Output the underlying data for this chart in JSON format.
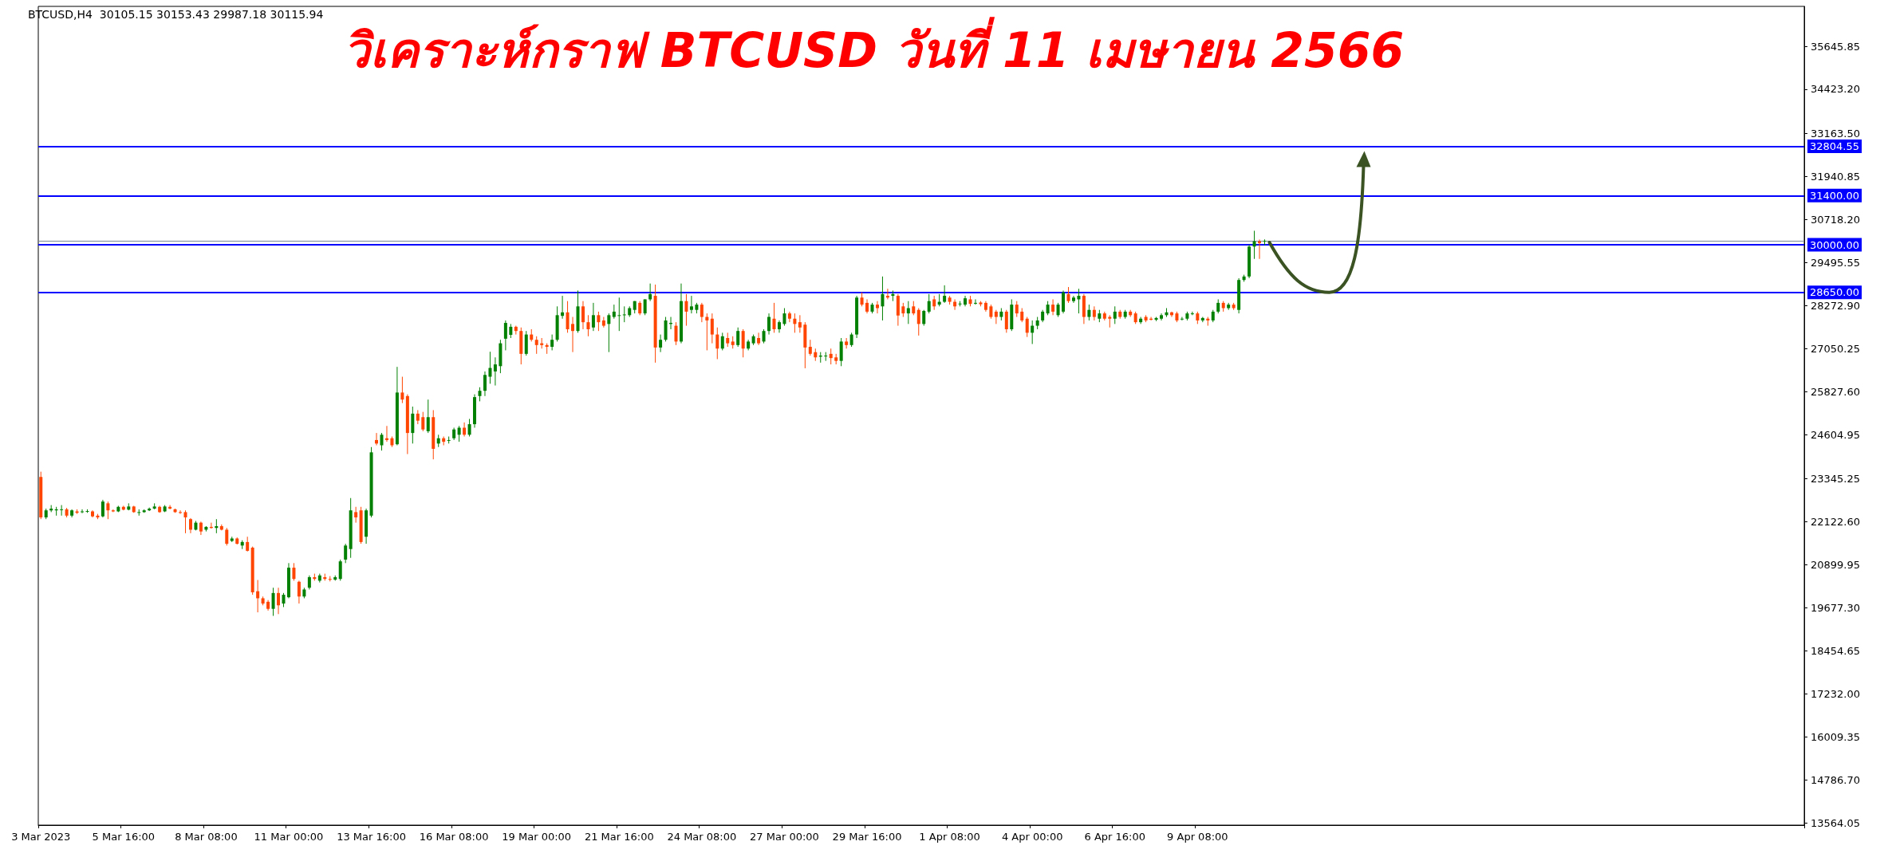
{
  "chart_data": {
    "type": "candlestick",
    "title": "วิเคราะห์กราฟ BTCUSD วันที่ 11 เมษายน 2566",
    "subtitle": "BTCUSD,H4  30105.15 30153.43 29987.18 30115.94",
    "colors": [
      "#ff4500",
      "#008000",
      "#008000",
      "#008000",
      "#008000",
      "#ff4500",
      "#008000",
      "#ff4500",
      "#008000",
      "#008000",
      "#ff4500",
      "#ff4500",
      "#008000",
      "#ff4500",
      "#ff4500",
      "#008000",
      "#ff4500",
      "#008000",
      "#ff4500",
      "#008000",
      "#008000",
      "#008000",
      "#008000",
      "#ff4500",
      "#008000",
      "#ff4500",
      "#ff4500",
      "#ff4500",
      "#ff4500",
      "#ff4500",
      "#008000",
      "#ff4500",
      "#008000",
      "#ff4500",
      "#008000",
      "#ff4500",
      "#ff4500",
      "#008000",
      "#ff4500",
      "#008000",
      "#ff4500",
      "#ff4500",
      "#ff4500",
      "#ff4500",
      "#ff4500",
      "#008000",
      "#ff4500",
      "#008000",
      "#008000",
      "#ff4500",
      "#ff4500",
      "#008000",
      "#008000",
      "#ff4500",
      "#008000",
      "#ff4500",
      "#ff4500",
      "#008000",
      "#008000",
      "#008000",
      "#008000",
      "#ff4500",
      "#ff4500",
      "#008000",
      "#008000",
      "#ff4500",
      "#008000",
      "#ff4500",
      "#ff4500",
      "#008000",
      "#ff4500",
      "#ff4500",
      "#008000",
      "#ff4500",
      "#ff4500",
      "#008000",
      "#ff4500",
      "#008000",
      "#ff4500",
      "#008000",
      "#008000",
      "#008000",
      "#ff4500",
      "#008000",
      "#008000",
      "#008000",
      "#008000",
      "#008000",
      "#008000",
      "#008000",
      "#008000",
      "#008000",
      "#ff4500",
      "#ff4500",
      "#008000",
      "#ff4500",
      "#ff4500",
      "#ff4500",
      "#ff4500",
      "#008000",
      "#008000",
      "#008000",
      "#ff4500",
      "#ff4500",
      "#008000",
      "#ff4500",
      "#ff4500",
      "#008000",
      "#ff4500",
      "#ff4500",
      "#008000",
      "#008000",
      "#008000",
      "#008000",
      "#008000",
      "#008000",
      "#ff4500",
      "#008000",
      "#008000",
      "#ff4500",
      "#008000",
      "#008000",
      "#008000",
      "#ff4500",
      "#008000",
      "#ff4500",
      "#008000",
      "#008000",
      "#ff4500",
      "#ff4500",
      "#ff4500",
      "#ff4500",
      "#008000",
      "#ff4500",
      "#ff4500",
      "#008000",
      "#ff4500",
      "#008000",
      "#008000",
      "#ff4500",
      "#008000",
      "#008000",
      "#ff4500",
      "#008000",
      "#008000",
      "#ff4500",
      "#ff4500",
      "#ff4500",
      "#ff4500",
      "#ff4500",
      "#ff4500",
      "#008000",
      "#008000",
      "#ff4500",
      "#ff4500",
      "#008000",
      "#ff4500",
      "#008000",
      "#008000",
      "#ff4500",
      "#ff4500",
      "#008000",
      "#ff4500",
      "#008000",
      "#ff4500",
      "#008000",
      "#ff4500",
      "#ff4500",
      "#008000",
      "#ff4500",
      "#ff4500",
      "#008000",
      "#008000",
      "#ff4500",
      "#008000",
      "#008000",
      "#ff4500",
      "#ff4500",
      "#008000",
      "#008000",
      "#ff4500",
      "#008000",
      "#ff4500",
      "#ff4500",
      "#ff4500",
      "#ff4500",
      "#008000",
      "#ff4500",
      "#008000",
      "#ff4500",
      "#ff4500",
      "#ff4500",
      "#008000",
      "#008000",
      "#008000",
      "#008000",
      "#ff4500",
      "#008000",
      "#008000",
      "#ff4500",
      "#008000",
      "#008000",
      "#ff4500",
      "#008000",
      "#ff4500",
      "#008000",
      "#ff4500",
      "#ff4500",
      "#008000",
      "#ff4500",
      "#008000",
      "#ff4500",
      "#ff4500",
      "#008000",
      "#ff4500",
      "#ff4500",
      "#008000",
      "#008000",
      "#008000",
      "#ff4500",
      "#ff4500",
      "#008000",
      "#008000",
      "#008000",
      "#ff4500",
      "#008000",
      "#ff4500",
      "#008000",
      "#008000",
      "#ff4500",
      "#008000",
      "#ff4500",
      "#008000",
      "#008000",
      "#008000",
      "#008000",
      "#ff4500",
      "#008000",
      null,
      null,
      null,
      null,
      null,
      null,
      null,
      null,
      null,
      null,
      null,
      null,
      null,
      null,
      null,
      null,
      null,
      null,
      null,
      null,
      null,
      null,
      null,
      null,
      null,
      null,
      null,
      null,
      null,
      null,
      null,
      null,
      null,
      null,
      null,
      null,
      null,
      null,
      null,
      null,
      null,
      null,
      null,
      null,
      null,
      null,
      null,
      null,
      null,
      null,
      null,
      null,
      null,
      null,
      null,
      null,
      null,
      null,
      null,
      null,
      null,
      null,
      null,
      null,
      null,
      null,
      null,
      null,
      null,
      null,
      null,
      null,
      null,
      null,
      null,
      null,
      null,
      null,
      null,
      null,
      null,
      null,
      null,
      null,
      null,
      null,
      null,
      null,
      null,
      null,
      null,
      null,
      null,
      null,
      null,
      null,
      null,
      null,
      null,
      null,
      null,
      null,
      null,
      null
    ],
    "categories": [
      "3 Mar 2023",
      null,
      null,
      null,
      null,
      null,
      null,
      null,
      null,
      null,
      null,
      null,
      null,
      null,
      null,
      null,
      "5 Mar 16:00",
      null,
      null,
      null,
      null,
      null,
      null,
      null,
      null,
      null,
      null,
      null,
      null,
      null,
      null,
      null,
      "8 Mar 08:00",
      null,
      null,
      null,
      null,
      null,
      null,
      null,
      null,
      null,
      null,
      null,
      null,
      null,
      null,
      null,
      "11 Mar 00:00",
      null,
      null,
      null,
      null,
      null,
      null,
      null,
      null,
      null,
      null,
      null,
      null,
      null,
      null,
      null,
      "13 Mar 16:00",
      null,
      null,
      null,
      null,
      null,
      null,
      null,
      null,
      null,
      null,
      null,
      null,
      null,
      null,
      null,
      "16 Mar 08:00",
      null,
      null,
      null,
      null,
      null,
      null,
      null,
      null,
      null,
      null,
      null,
      null,
      null,
      null,
      null,
      "19 Mar 00:00",
      null,
      null,
      null,
      null,
      null,
      null,
      null,
      null,
      null,
      null,
      null,
      null,
      null,
      null,
      null,
      "21 Mar 16:00",
      null,
      null,
      null,
      null,
      null,
      null,
      null,
      null,
      null,
      null,
      null,
      null,
      null,
      null,
      null,
      "24 Mar 08:00",
      null,
      null,
      null,
      null,
      null,
      null,
      null,
      null,
      null,
      null,
      null,
      null,
      null,
      null,
      null,
      "27 Mar 00:00",
      null,
      null,
      null,
      null,
      null,
      null,
      null,
      null,
      null,
      null,
      null,
      null,
      null,
      null,
      null,
      "29 Mar 16:00",
      null,
      null,
      null,
      null,
      null,
      null,
      null,
      null,
      null,
      null,
      null,
      null,
      null,
      null,
      null,
      "1 Apr 08:00",
      null,
      null,
      null,
      null,
      null,
      null,
      null,
      null,
      null,
      null,
      null,
      null,
      null,
      null,
      null,
      "4 Apr 00:00",
      null,
      null,
      null,
      null,
      null,
      null,
      null,
      null,
      null,
      null,
      null,
      null,
      null,
      null,
      null,
      "6 Apr 16:00",
      null,
      null,
      null,
      null,
      null,
      null,
      null,
      null,
      null,
      null,
      null,
      null,
      null,
      null,
      null,
      "9 Apr 08:00",
      null,
      null,
      null,
      null,
      null,
      null,
      null,
      null,
      null,
      null,
      null,
      null,
      null,
      null,
      null,
      null,
      null,
      null,
      null,
      null,
      null,
      null,
      null,
      null,
      null,
      null,
      null,
      null,
      null,
      null,
      null,
      null,
      null,
      null,
      null,
      null,
      null,
      null,
      null,
      null,
      null,
      null,
      null,
      null,
      null,
      null,
      null,
      null,
      null,
      null,
      null,
      null,
      null,
      null,
      null,
      null,
      null,
      null,
      null,
      null,
      null,
      null,
      null,
      null,
      null,
      null,
      null,
      null,
      null,
      null,
      null,
      null,
      null,
      null,
      null,
      null,
      null,
      null,
      null,
      null,
      null,
      null,
      null,
      null,
      null,
      null,
      null,
      null,
      null,
      null,
      null,
      null,
      null,
      null,
      null,
      null,
      null,
      null,
      null,
      null,
      null,
      null,
      null,
      null,
      null,
      null,
      null,
      null,
      null,
      null,
      null,
      null,
      null,
      null,
      null,
      null,
      null
    ],
    "ohlc": [
      [
        23400,
        23550,
        22200,
        22250
      ],
      [
        22250,
        22500,
        22200,
        22450
      ],
      [
        22450,
        22600,
        22400,
        22500
      ],
      [
        22450,
        22550,
        22300,
        22480
      ],
      [
        22480,
        22600,
        22300,
        22480
      ],
      [
        22480,
        22520,
        22250,
        22300
      ],
      [
        22300,
        22480,
        22250,
        22450
      ],
      [
        22420,
        22480,
        22350,
        22380
      ],
      [
        22400,
        22480,
        22370,
        22420
      ],
      [
        22420,
        22480,
        22380,
        22430
      ],
      [
        22420,
        22450,
        22250,
        22280
      ],
      [
        22300,
        22350,
        22200,
        22250
      ],
      [
        22280,
        22750,
        22250,
        22700
      ],
      [
        22650,
        22700,
        22200,
        22450
      ],
      [
        22450,
        22480,
        22400,
        22420
      ],
      [
        22420,
        22580,
        22400,
        22550
      ],
      [
        22550,
        22580,
        22450,
        22470
      ],
      [
        22470,
        22650,
        22450,
        22560
      ],
      [
        22560,
        22580,
        22380,
        22400
      ],
      [
        22400,
        22480,
        22300,
        22400
      ],
      [
        22400,
        22480,
        22380,
        22450
      ],
      [
        22450,
        22530,
        22430,
        22500
      ],
      [
        22500,
        22650,
        22480,
        22560
      ],
      [
        22550,
        22580,
        22380,
        22400
      ],
      [
        22420,
        22600,
        22400,
        22560
      ],
      [
        22550,
        22600,
        22480,
        22500
      ],
      [
        22480,
        22500,
        22380,
        22400
      ],
      [
        22400,
        22450,
        22350,
        22380
      ],
      [
        22400,
        22450,
        21800,
        22250
      ],
      [
        22200,
        22230,
        21800,
        21900
      ],
      [
        21900,
        22150,
        21880,
        22100
      ],
      [
        22100,
        22130,
        21750,
        21850
      ],
      [
        21900,
        22000,
        21850,
        21980
      ],
      [
        21980,
        22100,
        21930,
        21950
      ],
      [
        21950,
        22200,
        21800,
        22000
      ],
      [
        22000,
        22050,
        21880,
        21900
      ],
      [
        21900,
        21950,
        21450,
        21500
      ],
      [
        21580,
        21700,
        21550,
        21650
      ],
      [
        21650,
        21680,
        21480,
        21500
      ],
      [
        21450,
        21600,
        21350,
        21550
      ],
      [
        21550,
        21700,
        21280,
        21300
      ],
      [
        21390,
        21420,
        20050,
        20120
      ],
      [
        20150,
        20470,
        19550,
        19950
      ],
      [
        19950,
        20000,
        19750,
        19800
      ],
      [
        19850,
        19900,
        19600,
        19650
      ],
      [
        19650,
        20250,
        19450,
        20100
      ],
      [
        20100,
        20250,
        19500,
        19750
      ],
      [
        19800,
        20100,
        19700,
        20050
      ],
      [
        19980,
        20950,
        19950,
        20820
      ],
      [
        20820,
        20950,
        20450,
        20500
      ],
      [
        20420,
        20450,
        19800,
        20000
      ],
      [
        20000,
        20250,
        19950,
        20200
      ],
      [
        20250,
        20600,
        20200,
        20550
      ],
      [
        20550,
        20650,
        20450,
        20500
      ],
      [
        20450,
        20650,
        20400,
        20600
      ],
      [
        20550,
        20650,
        20450,
        20500
      ],
      [
        20500,
        20580,
        20430,
        20480
      ],
      [
        20480,
        20600,
        20450,
        20550
      ],
      [
        20500,
        21050,
        20450,
        21000
      ],
      [
        21050,
        21500,
        20950,
        21450
      ],
      [
        21350,
        22800,
        21100,
        22450
      ],
      [
        22400,
        22550,
        22100,
        22250
      ],
      [
        22450,
        22550,
        21500,
        21550
      ],
      [
        21700,
        22500,
        21500,
        22450
      ],
      [
        22300,
        24250,
        22250,
        24100
      ],
      [
        24450,
        24650,
        24300,
        24350
      ],
      [
        24300,
        24650,
        24150,
        24600
      ],
      [
        24500,
        24850,
        24400,
        24450
      ],
      [
        24500,
        24550,
        24250,
        24300
      ],
      [
        24330,
        26530,
        24300,
        25800
      ],
      [
        25800,
        26250,
        25500,
        25600
      ],
      [
        25700,
        25750,
        24050,
        24650
      ],
      [
        24650,
        25400,
        24350,
        25200
      ],
      [
        25200,
        25300,
        24900,
        25000
      ],
      [
        25100,
        25250,
        24700,
        24750
      ],
      [
        24700,
        25600,
        24650,
        25100
      ],
      [
        25100,
        25300,
        23900,
        24200
      ],
      [
        24350,
        24600,
        24250,
        24500
      ],
      [
        24500,
        24550,
        24300,
        24400
      ],
      [
        24450,
        24550,
        24350,
        24450
      ],
      [
        24500,
        24800,
        24450,
        24750
      ],
      [
        24600,
        24850,
        24400,
        24800
      ],
      [
        24800,
        24950,
        24550,
        24600
      ],
      [
        24600,
        25050,
        24550,
        24900
      ],
      [
        24900,
        25750,
        24800,
        25670
      ],
      [
        25700,
        25950,
        25550,
        25850
      ],
      [
        25850,
        26400,
        25700,
        26300
      ],
      [
        26250,
        26960,
        26050,
        26500
      ],
      [
        26400,
        26800,
        26000,
        26600
      ],
      [
        26550,
        27300,
        26350,
        27200
      ],
      [
        27330,
        27850,
        27000,
        27780
      ],
      [
        27440,
        27750,
        27350,
        27670
      ],
      [
        27670,
        27700,
        27450,
        27550
      ],
      [
        27550,
        27650,
        26600,
        26900
      ],
      [
        26900,
        27550,
        26850,
        27450
      ],
      [
        27450,
        27600,
        27250,
        27300
      ],
      [
        27300,
        27400,
        26900,
        27150
      ],
      [
        27200,
        27350,
        27050,
        27150
      ],
      [
        27150,
        27200,
        26900,
        27100
      ],
      [
        27100,
        27450,
        27000,
        27300
      ],
      [
        27300,
        28250,
        27250,
        28000
      ],
      [
        27980,
        28550,
        27900,
        28080
      ],
      [
        28080,
        28400,
        27500,
        27600
      ],
      [
        27750,
        27950,
        26950,
        27550
      ],
      [
        27550,
        28700,
        27500,
        28250
      ],
      [
        28250,
        28400,
        27600,
        27800
      ],
      [
        27800,
        28000,
        27400,
        27600
      ],
      [
        27650,
        28350,
        27550,
        28000
      ],
      [
        28000,
        28100,
        27550,
        27800
      ],
      [
        27850,
        27950,
        27650,
        27700
      ],
      [
        27750,
        28050,
        26950,
        28000
      ],
      [
        27950,
        28300,
        27900,
        28100
      ],
      [
        28000,
        28500,
        27550,
        28000
      ],
      [
        28000,
        28250,
        27800,
        28020
      ],
      [
        28000,
        28250,
        27950,
        28200
      ],
      [
        28150,
        28400,
        28050,
        28400
      ],
      [
        28350,
        28400,
        28000,
        28050
      ],
      [
        28050,
        28450,
        28000,
        28450
      ],
      [
        28450,
        28900,
        28400,
        28600
      ],
      [
        28550,
        28870,
        26650,
        27080
      ],
      [
        27080,
        27450,
        26950,
        27300
      ],
      [
        27300,
        27950,
        27250,
        27850
      ],
      [
        27750,
        27950,
        27600,
        27780
      ],
      [
        27700,
        27800,
        27150,
        27250
      ],
      [
        27250,
        28900,
        27200,
        28400
      ],
      [
        28400,
        28600,
        27700,
        28100
      ],
      [
        28150,
        28550,
        28050,
        28250
      ],
      [
        28150,
        28350,
        28050,
        28300
      ],
      [
        28300,
        28350,
        27800,
        27950
      ],
      [
        27950,
        28050,
        27000,
        27850
      ],
      [
        27900,
        28050,
        27200,
        27450
      ],
      [
        27450,
        27650,
        26750,
        27050
      ],
      [
        27050,
        27500,
        27000,
        27400
      ],
      [
        27350,
        27500,
        27100,
        27200
      ],
      [
        27250,
        27400,
        27050,
        27150
      ],
      [
        27150,
        27650,
        27100,
        27550
      ],
      [
        27550,
        27600,
        26800,
        27050
      ],
      [
        27050,
        27300,
        27000,
        27250
      ],
      [
        27200,
        27450,
        27150,
        27400
      ],
      [
        27350,
        27500,
        27150,
        27200
      ],
      [
        27250,
        27600,
        27200,
        27550
      ],
      [
        27550,
        28050,
        27450,
        27950
      ],
      [
        27900,
        28350,
        27500,
        27600
      ],
      [
        27600,
        27850,
        27500,
        27800
      ],
      [
        27750,
        28200,
        27700,
        28050
      ],
      [
        28050,
        28100,
        27800,
        27900
      ],
      [
        27900,
        28050,
        27500,
        27750
      ],
      [
        27800,
        28000,
        27500,
        27650
      ],
      [
        27730,
        27800,
        26490,
        27080
      ],
      [
        27100,
        27300,
        26850,
        26900
      ],
      [
        26950,
        27050,
        26700,
        26800
      ],
      [
        26820,
        26950,
        26650,
        26850
      ],
      [
        26850,
        26950,
        26700,
        26850
      ],
      [
        26900,
        27050,
        26600,
        26780
      ],
      [
        26800,
        26900,
        26600,
        26700
      ],
      [
        26700,
        27350,
        26550,
        27250
      ],
      [
        27250,
        27350,
        27050,
        27150
      ],
      [
        27150,
        27500,
        27100,
        27450
      ],
      [
        27450,
        28550,
        27350,
        28500
      ],
      [
        28500,
        28650,
        28250,
        28300
      ],
      [
        28350,
        28450,
        28050,
        28100
      ],
      [
        28100,
        28350,
        28050,
        28300
      ],
      [
        28300,
        28400,
        28050,
        28200
      ],
      [
        28250,
        29100,
        27850,
        28600
      ],
      [
        28550,
        28750,
        28450,
        28500
      ],
      [
        28550,
        28700,
        28400,
        28600
      ],
      [
        28550,
        28600,
        27700,
        27990
      ],
      [
        28250,
        28350,
        27950,
        28050
      ],
      [
        28050,
        28400,
        27750,
        28200
      ],
      [
        28250,
        28400,
        28000,
        28050
      ],
      [
        28150,
        28200,
        27420,
        27750
      ],
      [
        27750,
        28150,
        27700,
        28120
      ],
      [
        28100,
        28600,
        28050,
        28400
      ],
      [
        28450,
        28550,
        28150,
        28250
      ],
      [
        28300,
        28600,
        28250,
        28380
      ],
      [
        28380,
        28850,
        28350,
        28550
      ],
      [
        28500,
        28550,
        28300,
        28380
      ],
      [
        28380,
        28450,
        28150,
        28250
      ],
      [
        28320,
        28400,
        28250,
        28330
      ],
      [
        28300,
        28550,
        28250,
        28480
      ],
      [
        28450,
        28550,
        28250,
        28320
      ],
      [
        28350,
        28450,
        28300,
        28350
      ],
      [
        28360,
        28400,
        28250,
        28310
      ],
      [
        28350,
        28400,
        28100,
        28150
      ],
      [
        28250,
        28300,
        27900,
        27950
      ],
      [
        28100,
        28150,
        27750,
        27950
      ],
      [
        27950,
        28200,
        27850,
        28100
      ],
      [
        28100,
        28150,
        27500,
        27600
      ],
      [
        27600,
        28450,
        27550,
        28300
      ],
      [
        28300,
        28400,
        27950,
        28050
      ],
      [
        28100,
        28200,
        27800,
        27850
      ],
      [
        27900,
        27950,
        27380,
        27500
      ],
      [
        27500,
        27850,
        27180,
        27700
      ],
      [
        27700,
        27950,
        27600,
        27850
      ],
      [
        27850,
        28150,
        27800,
        28100
      ],
      [
        28050,
        28400,
        28000,
        28300
      ],
      [
        28300,
        28450,
        28000,
        28100
      ],
      [
        28000,
        28350,
        27950,
        28300
      ],
      [
        28100,
        28700,
        28050,
        28650
      ],
      [
        28600,
        28800,
        28350,
        28400
      ],
      [
        28400,
        28550,
        28350,
        28500
      ],
      [
        28450,
        28750,
        28050,
        28550
      ],
      [
        28550,
        28600,
        27750,
        27950
      ],
      [
        27950,
        28300,
        27850,
        28150
      ],
      [
        28150,
        28250,
        27850,
        27950
      ],
      [
        27900,
        28150,
        27800,
        28050
      ],
      [
        28050,
        28100,
        27850,
        27900
      ],
      [
        27950,
        28000,
        27650,
        27900
      ],
      [
        27900,
        28250,
        27750,
        28100
      ],
      [
        28100,
        28150,
        27900,
        27950
      ],
      [
        27950,
        28150,
        27900,
        28100
      ],
      [
        28100,
        28150,
        27950,
        28000
      ],
      [
        28050,
        28100,
        27750,
        27800
      ],
      [
        27800,
        27950,
        27750,
        27900
      ],
      [
        27950,
        28000,
        27800,
        27850
      ],
      [
        27900,
        27950,
        27850,
        27870
      ],
      [
        27870,
        27950,
        27830,
        27920
      ],
      [
        27900,
        28050,
        27850,
        28000
      ],
      [
        28000,
        28200,
        27950,
        28080
      ],
      [
        28080,
        28100,
        27950,
        28000
      ],
      [
        28050,
        28100,
        27800,
        27850
      ],
      [
        27900,
        27950,
        27850,
        27900
      ],
      [
        27900,
        28100,
        27850,
        28050
      ],
      [
        28050,
        28100,
        28000,
        28050
      ],
      [
        28050,
        28100,
        27750,
        27850
      ],
      [
        27850,
        27950,
        27800,
        27920
      ],
      [
        27900,
        27950,
        27700,
        27850
      ],
      [
        27850,
        28150,
        27800,
        28100
      ],
      [
        28100,
        28450,
        28050,
        28350
      ],
      [
        28350,
        28400,
        28100,
        28200
      ],
      [
        28200,
        28350,
        28150,
        28300
      ],
      [
        28300,
        28350,
        28150,
        28200
      ],
      [
        28150,
        29050,
        28050,
        29000
      ],
      [
        29000,
        29150,
        28950,
        29100
      ],
      [
        29100,
        30000,
        29050,
        29950
      ],
      [
        29950,
        30400,
        29600,
        30100
      ],
      [
        30100,
        30150,
        29600,
        30050
      ],
      [
        30105.15,
        30153.43,
        29987.18,
        30115.94
      ],
      null,
      null,
      null,
      null,
      null,
      null,
      null,
      null,
      null,
      null,
      null,
      null,
      null,
      null,
      null,
      null,
      null,
      null,
      null,
      null,
      null,
      null,
      null,
      null,
      null,
      null,
      null,
      null,
      null,
      null,
      null,
      null,
      null,
      null,
      null,
      null,
      null,
      null,
      null,
      null,
      null,
      null,
      null,
      null,
      null,
      null,
      null,
      null,
      null,
      null,
      null,
      null,
      null,
      null,
      null,
      null,
      null,
      null,
      null,
      null,
      null,
      null,
      null,
      null,
      null,
      null,
      null,
      null,
      null,
      null,
      null,
      null,
      null,
      null,
      null,
      null,
      null,
      null,
      null,
      null,
      null,
      null,
      null,
      null,
      null,
      null,
      null,
      null,
      null,
      null,
      null,
      null,
      null,
      null,
      null,
      null,
      null,
      null,
      null,
      null,
      null,
      null,
      null,
      null
    ],
    "ylim": [
      13500,
      36780
    ],
    "yticks": [
      {
        "value": 13564.05,
        "label": "13564.05"
      },
      {
        "value": 14786.7,
        "label": "14786.70"
      },
      {
        "value": 16009.35,
        "label": "16009.35"
      },
      {
        "value": 17232.0,
        "label": "17232.00"
      },
      {
        "value": 18454.65,
        "label": "18454.65"
      },
      {
        "value": 19677.3,
        "label": "19677.30"
      },
      {
        "value": 20899.95,
        "label": "20899.95"
      },
      {
        "value": 22122.6,
        "label": "22122.60"
      },
      {
        "value": 23345.25,
        "label": "23345.25"
      },
      {
        "value": 24604.95,
        "label": "24604.95"
      },
      {
        "value": 25827.6,
        "label": "25827.60"
      },
      {
        "value": 27050.25,
        "label": "27050.25"
      },
      {
        "value": 28272.9,
        "label": "28272.90"
      },
      {
        "value": 29495.55,
        "label": "29495.55"
      },
      {
        "value": 30718.2,
        "label": "30718.20"
      },
      {
        "value": 31940.85,
        "label": "31940.85"
      },
      {
        "value": 33163.5,
        "label": "33163.50"
      },
      {
        "value": 34423.2,
        "label": "34423.20"
      },
      {
        "value": 35645.85,
        "label": "35645.85"
      }
    ],
    "ref_lines": [
      {
        "axis": "y",
        "value": 32804.55,
        "label": "32804.55",
        "color": "#0000ff"
      },
      {
        "axis": "y",
        "value": 31400.0,
        "label": "31400.00",
        "color": "#0000ff"
      },
      {
        "axis": "y",
        "value": 30115.94,
        "color": "#778899"
      },
      {
        "axis": "y",
        "value": 30000.0,
        "label": "30000.00",
        "color": "#0000ff"
      },
      {
        "axis": "y",
        "value": 28650.0,
        "label": "28650.00",
        "color": "#0000ff"
      }
    ],
    "grid": false
  }
}
